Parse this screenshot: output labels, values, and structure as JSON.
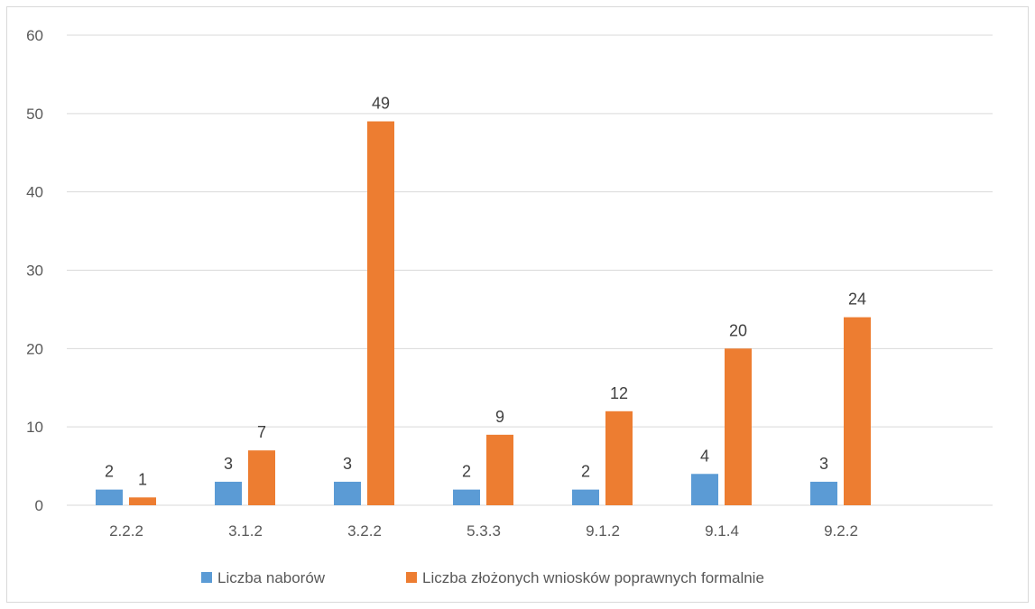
{
  "chart_data": {
    "type": "bar",
    "categories": [
      "2.2.2",
      "3.1.2",
      "3.2.2",
      "5.3.3",
      "9.1.2",
      "9.1.4",
      "9.2.2"
    ],
    "series": [
      {
        "name": "Liczba naborów",
        "values": [
          2,
          3,
          3,
          2,
          2,
          4,
          3
        ],
        "color": "#5b9bd5"
      },
      {
        "name": "Liczba złożonych wniosków poprawnych formalnie",
        "values": [
          1,
          7,
          49,
          9,
          12,
          20,
          24
        ],
        "color": "#ed7d31"
      }
    ],
    "yticks": [
      0,
      10,
      20,
      30,
      40,
      50,
      60
    ],
    "ylim": [
      0,
      60
    ],
    "grid": true,
    "legend": "bottom",
    "data_labels": true
  }
}
